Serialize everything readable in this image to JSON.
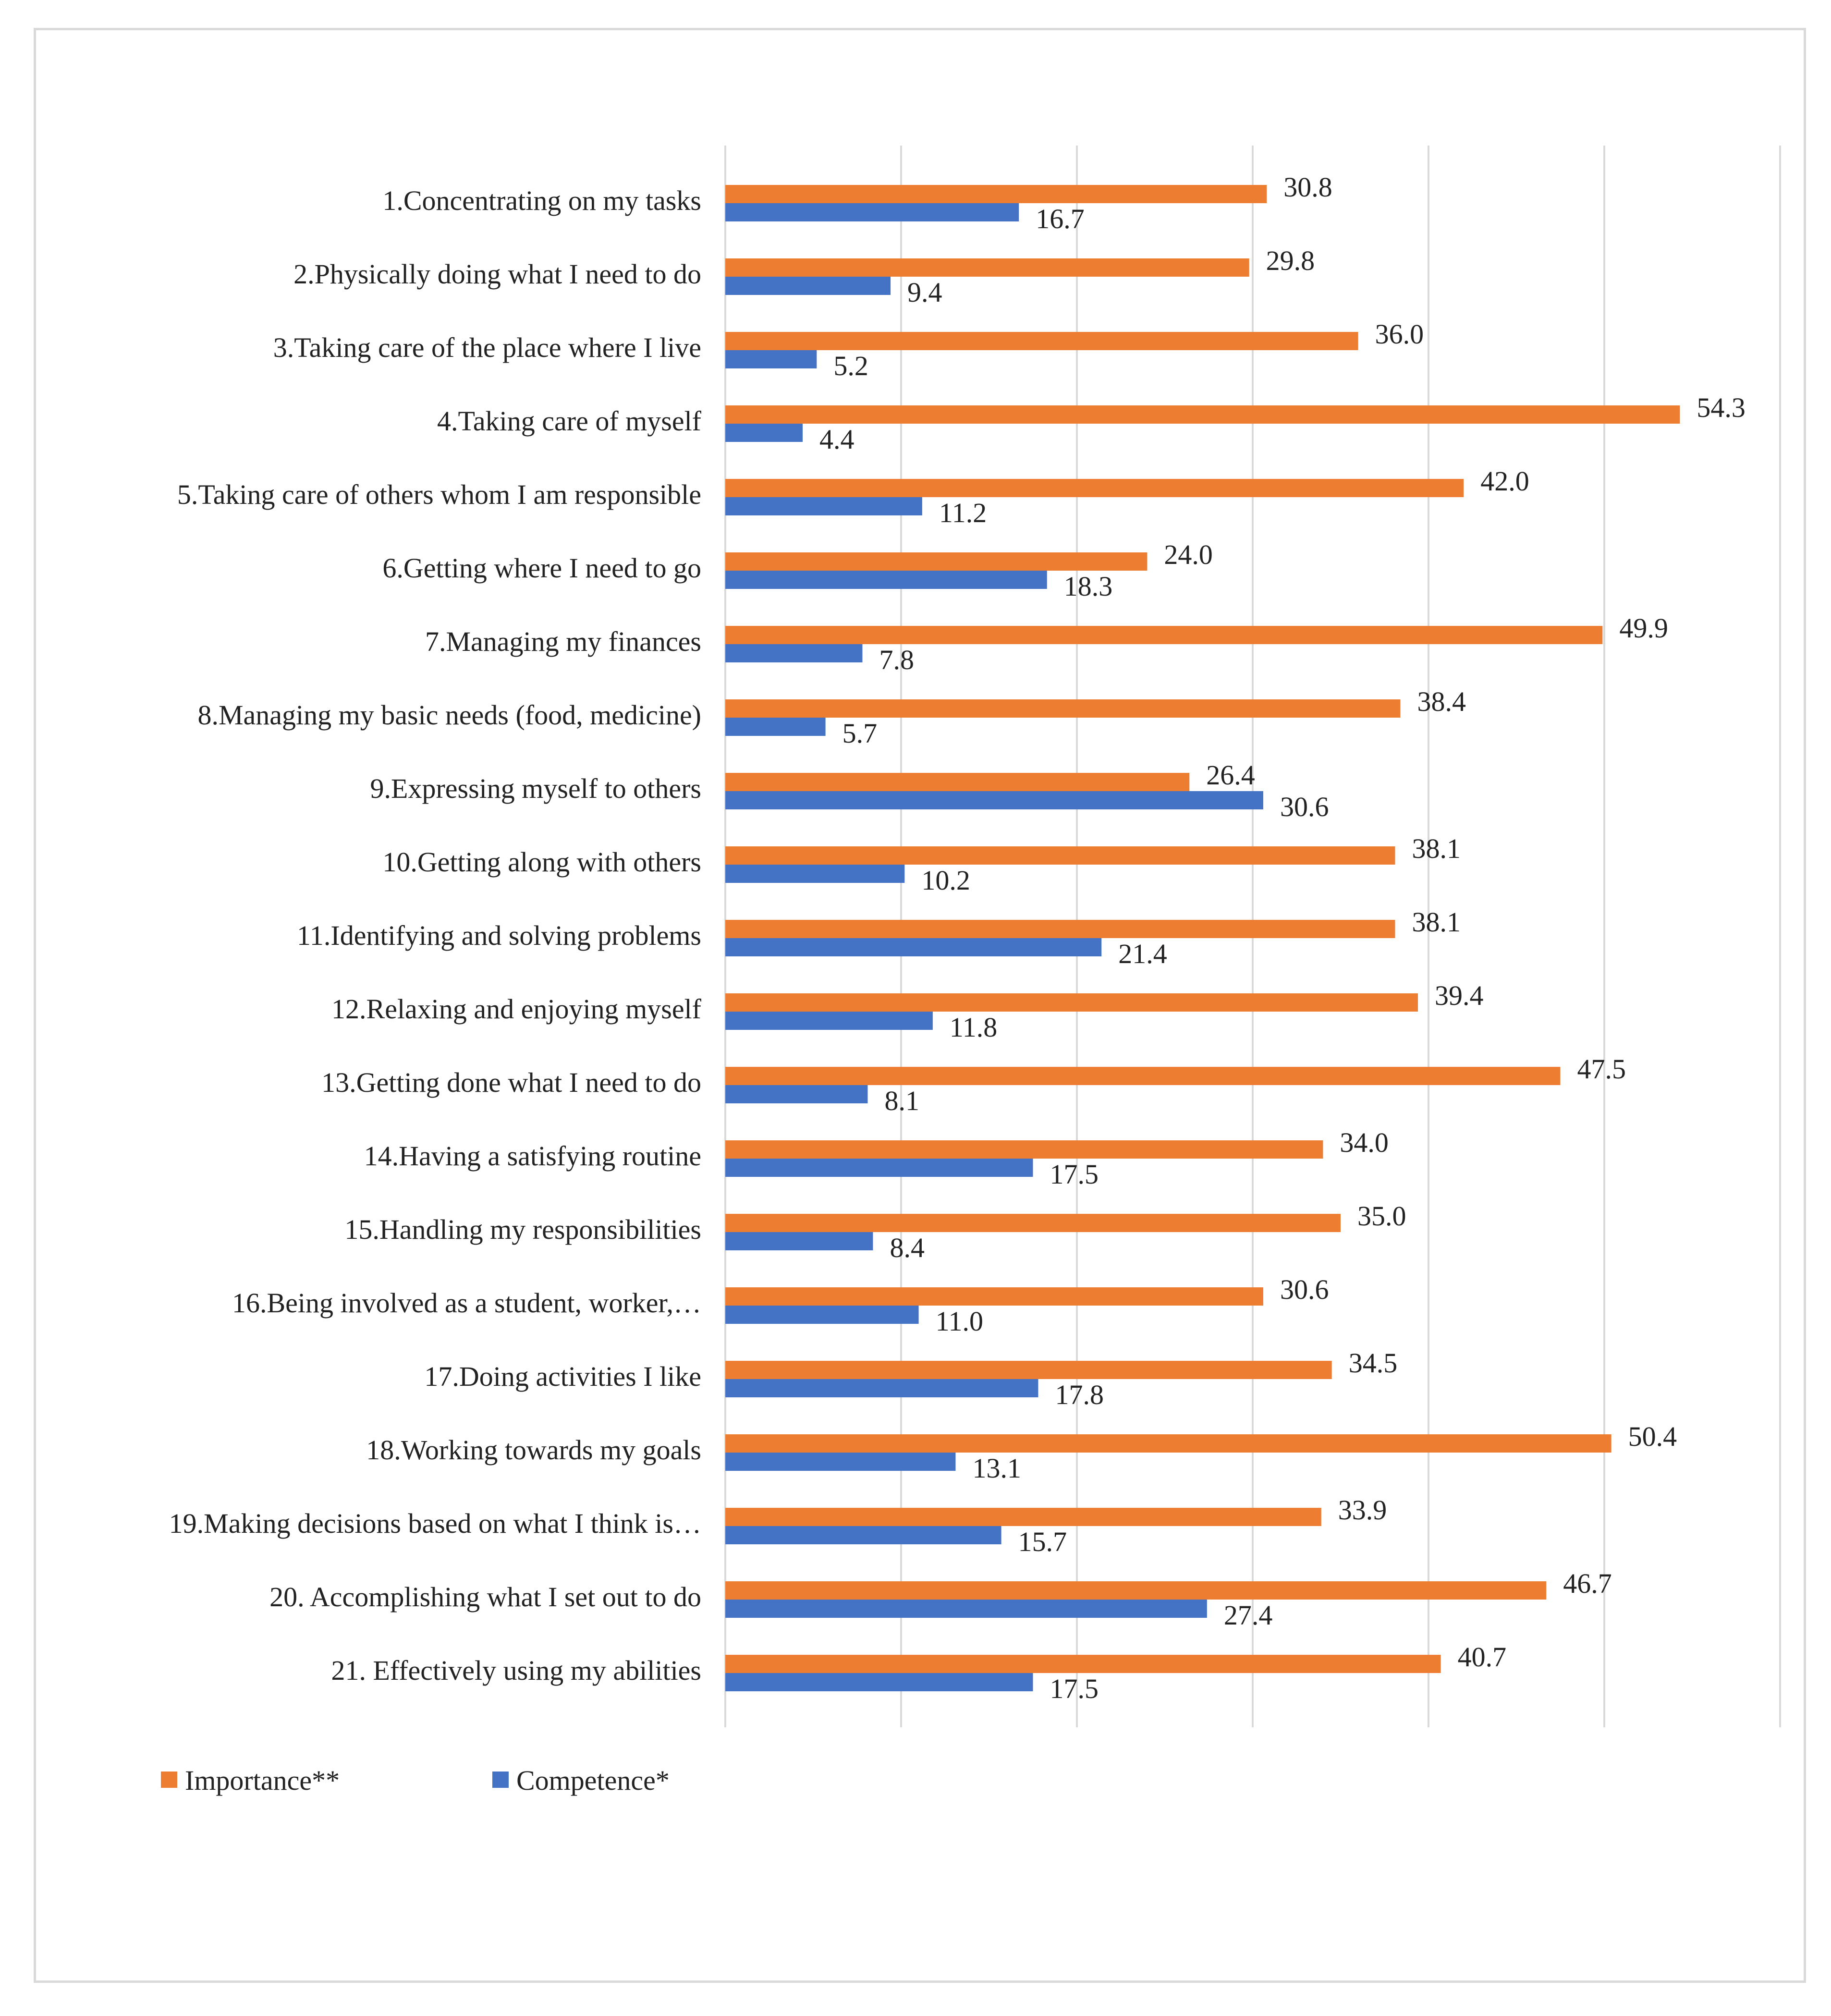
{
  "chart_data": {
    "type": "bar",
    "orientation": "horizontal",
    "title": "",
    "xlabel": "",
    "ylabel": "",
    "xlim": [
      0,
      60
    ],
    "grid": true,
    "legend_position": "bottom-left",
    "categories": [
      "1.Concentrating on my tasks",
      "2.Physically doing what I need to do",
      "3.Taking care of the place where I live",
      "4.Taking care of myself",
      "5.Taking care of others whom I am responsible",
      "6.Getting where I need to go",
      "7.Managing my finances",
      "8.Managing my basic needs (food, medicine)",
      "9.Expressing myself to others",
      "10.Getting along with others",
      "11.Identifying and solving problems",
      "12.Relaxing and enjoying myself",
      "13.Getting done what I need to do",
      "14.Having a satisfying routine",
      "15.Handling my responsibilities",
      "16.Being involved as a student, worker,…",
      "17.Doing activities I like",
      "18.Working towards my goals",
      "19.Making decisions based on what I think is…",
      "20. Accomplishing what I set out to do",
      "21. Effectively using my abilities"
    ],
    "series": [
      {
        "name": "Importance**",
        "color": "#ED7D31",
        "values": [
          30.8,
          29.8,
          36.0,
          54.3,
          42.0,
          24.0,
          49.9,
          38.4,
          26.4,
          38.1,
          38.1,
          39.4,
          47.5,
          34.0,
          35.0,
          30.6,
          34.5,
          50.4,
          33.9,
          46.7,
          40.7
        ]
      },
      {
        "name": "Competence*",
        "color": "#4472C4",
        "values": [
          16.7,
          9.4,
          5.2,
          4.4,
          11.2,
          18.3,
          7.8,
          5.7,
          30.6,
          10.2,
          21.4,
          11.8,
          8.1,
          17.5,
          8.4,
          11.0,
          17.8,
          13.1,
          15.7,
          27.4,
          17.5
        ]
      }
    ]
  }
}
